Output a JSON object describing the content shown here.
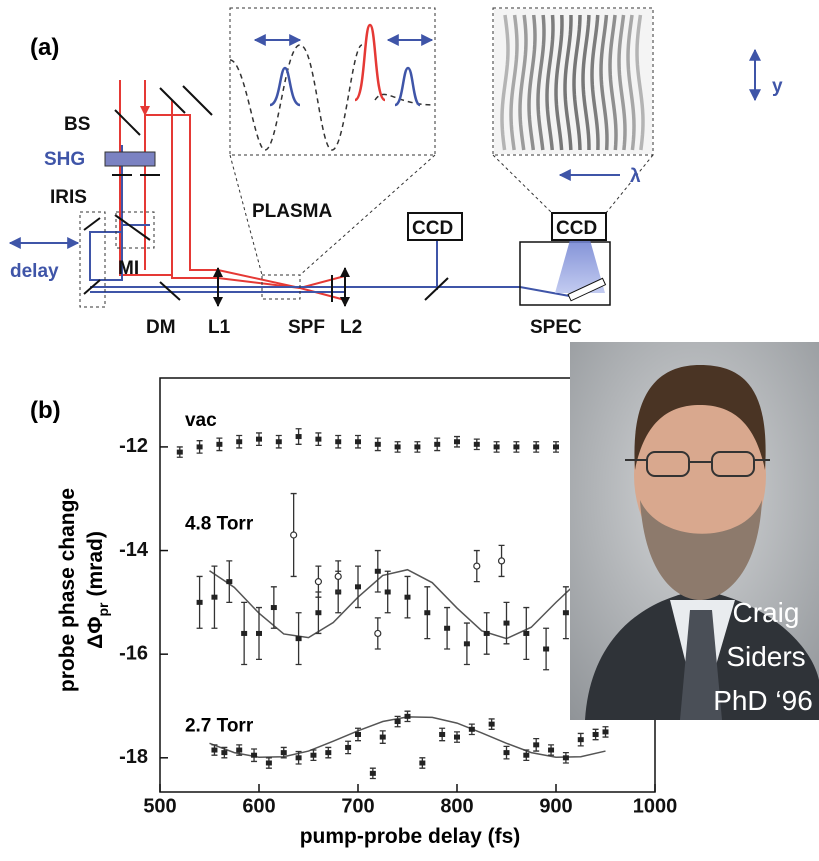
{
  "diagram": {
    "panel_label": "(a)",
    "labels": {
      "bs": "BS",
      "shg": "SHG",
      "iris": "IRIS",
      "delay": "delay",
      "mi": "MI",
      "dm": "DM",
      "l1": "L1",
      "spf": "SPF",
      "l2": "L2",
      "plasma": "PLASMA",
      "ccd1": "CCD",
      "ccd2": "CCD",
      "spec": "SPEC",
      "y": "y",
      "lambda": "λ"
    }
  },
  "chart_data": {
    "type": "errorbar",
    "panel_label": "(b)",
    "xlabel": "pump-probe delay (fs)",
    "ylabel": {
      "line1": "probe phase change",
      "symbol": "ΔΦ",
      "subscript": "pr",
      "unit": "(mrad)"
    },
    "xlim": [
      500,
      1000
    ],
    "xticks": [
      500,
      600,
      700,
      800,
      900,
      1000
    ],
    "ylim": [
      -18.66,
      -10.67
    ],
    "yticks": [
      -18,
      -16,
      -14,
      -12
    ],
    "annotations": [
      {
        "text": "vac",
        "x": 505,
        "y": -11.5
      },
      {
        "text": "4.8 Torr",
        "x": 505,
        "y": -13.5
      },
      {
        "text": "2.7 Torr",
        "x": 505,
        "y": -17.4
      }
    ],
    "series": [
      {
        "marker": "square",
        "x": [
          520,
          540,
          560,
          580,
          600,
          620,
          640,
          660,
          680,
          700,
          720,
          740,
          760,
          780,
          800,
          820,
          840,
          860,
          880,
          900
        ],
        "values": [
          -12.1,
          -12.0,
          -11.95,
          -11.9,
          -11.85,
          -11.9,
          -11.8,
          -11.85,
          -11.9,
          -11.9,
          -11.95,
          -12.0,
          -12.0,
          -11.95,
          -11.9,
          -11.95,
          -12.0,
          -12.0,
          -12.0,
          -12.0
        ],
        "errors": [
          0.1,
          0.12,
          0.12,
          0.12,
          0.12,
          0.12,
          0.15,
          0.12,
          0.12,
          0.12,
          0.12,
          0.1,
          0.1,
          0.12,
          0.1,
          0.1,
          0.1,
          0.1,
          0.1,
          0.1
        ]
      },
      {
        "marker": "square",
        "x": [
          540,
          555,
          570,
          585,
          600,
          615,
          640,
          660,
          680,
          700,
          720,
          730,
          750,
          770,
          790,
          810,
          830,
          850,
          870,
          890,
          910
        ],
        "values": [
          -15.0,
          -14.9,
          -14.6,
          -15.6,
          -15.6,
          -15.1,
          -15.7,
          -15.2,
          -14.8,
          -14.7,
          -14.4,
          -14.8,
          -14.9,
          -15.2,
          -15.5,
          -15.8,
          -15.6,
          -15.4,
          -15.6,
          -15.9,
          -15.2
        ],
        "errors": [
          0.5,
          0.6,
          0.4,
          0.6,
          0.5,
          0.4,
          0.5,
          0.4,
          0.4,
          0.4,
          0.4,
          0.4,
          0.4,
          0.5,
          0.4,
          0.4,
          0.4,
          0.4,
          0.5,
          0.4,
          0.5
        ]
      },
      {
        "marker": "circle",
        "x": [
          635,
          660,
          680,
          720,
          820,
          845
        ],
        "values": [
          -13.7,
          -14.6,
          -14.5,
          -15.6,
          -14.3,
          -14.2
        ],
        "errors": [
          0.8,
          0.3,
          0.3,
          0.3,
          0.3,
          0.3
        ]
      },
      {
        "marker": "square",
        "x": [
          555,
          565,
          580,
          595,
          610,
          625,
          640,
          655,
          670,
          690,
          700,
          715,
          725,
          740,
          750,
          765,
          785,
          800,
          815,
          835,
          850,
          870,
          880,
          895,
          910,
          925,
          940,
          950
        ],
        "values": [
          -17.85,
          -17.9,
          -17.85,
          -17.95,
          -18.1,
          -17.9,
          -18.0,
          -17.95,
          -17.9,
          -17.8,
          -17.55,
          -18.3,
          -17.6,
          -17.3,
          -17.2,
          -18.1,
          -17.55,
          -17.6,
          -17.45,
          -17.35,
          -17.9,
          -17.95,
          -17.75,
          -17.85,
          -18.0,
          -17.65,
          -17.55,
          -17.5
        ],
        "errors": [
          0.1,
          0.1,
          0.1,
          0.12,
          0.1,
          0.1,
          0.12,
          0.1,
          0.1,
          0.12,
          0.12,
          0.1,
          0.12,
          0.1,
          0.1,
          0.1,
          0.12,
          0.1,
          0.1,
          0.1,
          0.12,
          0.1,
          0.12,
          0.1,
          0.1,
          0.12,
          0.1,
          0.1
        ]
      }
    ],
    "fits": [
      {
        "x": [
          550,
          575,
          600,
          625,
          650,
          675,
          700,
          725,
          750,
          775,
          800,
          825,
          850,
          875,
          900,
          925,
          950
        ],
        "values": [
          -14.39,
          -14.71,
          -15.21,
          -15.61,
          -15.68,
          -15.39,
          -14.9,
          -14.48,
          -14.37,
          -14.62,
          -15.11,
          -15.55,
          -15.7,
          -15.48,
          -15.0,
          -14.55,
          -14.36
        ]
      },
      {
        "x": [
          550,
          575,
          600,
          625,
          650,
          675,
          700,
          725,
          750,
          775,
          800,
          825,
          850,
          875,
          900,
          925,
          950
        ],
        "values": [
          -17.72,
          -17.9,
          -17.99,
          -17.98,
          -17.87,
          -17.68,
          -17.48,
          -17.3,
          -17.21,
          -17.22,
          -17.33,
          -17.52,
          -17.72,
          -17.9,
          -17.99,
          -17.98,
          -17.87
        ]
      }
    ]
  },
  "photo": {
    "caption": [
      "Craig",
      "Siders",
      "PhD ‘96"
    ]
  }
}
